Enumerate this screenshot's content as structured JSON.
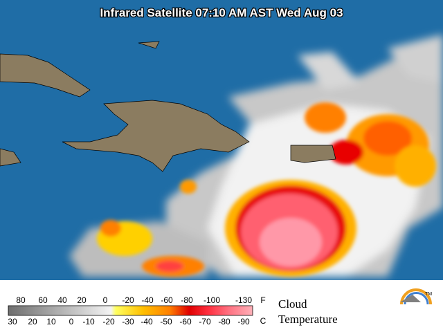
{
  "title": "Infrared Satellite 07:10 AM AST Wed Aug 03",
  "legend": {
    "fahrenheit": {
      "labels": [
        "80",
        "60",
        "40",
        "20",
        "0",
        "-20",
        "-40",
        "-60",
        "-80",
        "-100",
        "-130"
      ],
      "unit": "F"
    },
    "celsius": {
      "labels": [
        "30",
        "20",
        "10",
        "0",
        "-10",
        "-20",
        "-30",
        "-40",
        "-50",
        "-60",
        "-70",
        "-80",
        "-90"
      ],
      "unit": "C"
    },
    "caption": [
      "Cloud",
      "Temperature"
    ]
  },
  "logo": "TM"
}
